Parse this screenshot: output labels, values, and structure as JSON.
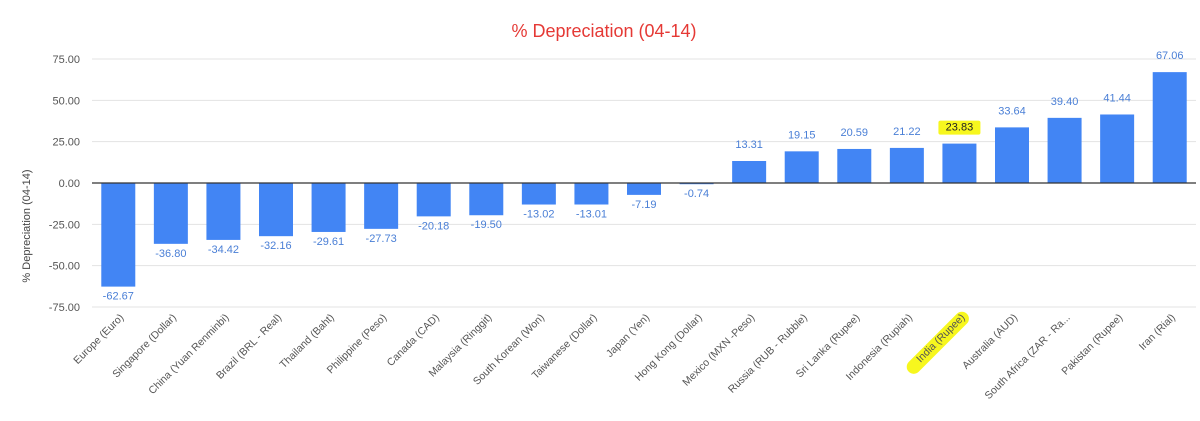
{
  "colors": {
    "bar": "#4285f4",
    "title": "#e53935",
    "label": "#4a7fd6",
    "highlight": "#f7f71e",
    "grid": "#e3e3e3",
    "axis": "#333333"
  },
  "chart_data": {
    "type": "bar",
    "title": "% Depreciation (04-14)",
    "xlabel": "",
    "ylabel": "% Depreciation (04-14)",
    "ylim": [
      -75,
      75
    ],
    "yticks": [
      75,
      50,
      25,
      0,
      -25,
      -50,
      -75
    ],
    "ytick_labels": [
      "75.00",
      "50.00",
      "25.00",
      "0.00",
      "-25.00",
      "-50.00",
      "-75.00"
    ],
    "grid": true,
    "categories": [
      "Europe (Euro)",
      "Singapore (Dollar)",
      "China (Yuan Renminbi)",
      "Brazil (BRL - Real)",
      "Thailand (Baht)",
      "Philippine (Peso)",
      "Canada (CAD)",
      "Malaysia (Ringgit)",
      "South Korean (Won)",
      "Taiwanese (Dollar)",
      "Japan (Yen)",
      "Hong Kong (Dollar)",
      "Mexico (MXN -Peso)",
      "Russia (RUB - Rubble)",
      "Sri Lanka (Rupee)",
      "Indonesia (Rupiah)",
      "India (Rupee)",
      "Australia (AUD)",
      "South Africa (ZAR - Ra...",
      "Pakistan (Rupee)",
      "Iran (Rial)"
    ],
    "values": [
      -62.67,
      -36.8,
      -34.42,
      -32.16,
      -29.61,
      -27.73,
      -20.18,
      -19.5,
      -13.02,
      -13.01,
      -7.19,
      -0.74,
      13.31,
      19.15,
      20.59,
      21.22,
      23.83,
      33.64,
      39.4,
      41.44,
      67.06
    ],
    "value_labels": [
      "-62.67",
      "-36.80",
      "-34.42",
      "-32.16",
      "-29.61",
      "-27.73",
      "-20.18",
      "-19.50",
      "-13.02",
      "-13.01",
      "-7.19",
      "-0.74",
      "13.31",
      "19.15",
      "20.59",
      "21.22",
      "23.83",
      "33.64",
      "39.40",
      "41.44",
      "67.06"
    ],
    "highlighted": [
      "India (Rupee)"
    ]
  }
}
